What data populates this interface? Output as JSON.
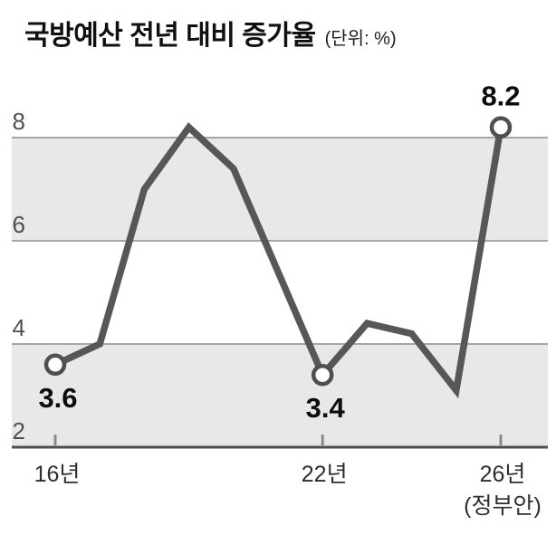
{
  "chart_data": {
    "type": "line",
    "title": "국방예산 전년 대비 증가율",
    "subtitle": "(단위: %)",
    "unit": "%",
    "x": [
      16,
      17,
      18,
      19,
      20,
      21,
      22,
      23,
      24,
      25,
      26
    ],
    "x_suffix": "년",
    "values": [
      3.6,
      4.0,
      7.0,
      8.2,
      7.4,
      5.4,
      3.4,
      4.4,
      4.2,
      3.1,
      8.2
    ],
    "ylim": [
      2,
      8.7
    ],
    "yticks": [
      2,
      4,
      6,
      8
    ],
    "grid": "horizontal-band-edges",
    "shaded_bands": [
      [
        6,
        8
      ],
      [
        2,
        4
      ]
    ],
    "xticks": [
      {
        "value": 16,
        "label": "16년"
      },
      {
        "value": 22,
        "label": "22년"
      },
      {
        "value": 26,
        "label": "26년",
        "sublabel": "(정부안)"
      }
    ],
    "annotations": [
      {
        "x": 16,
        "y": 3.6,
        "label": "3.6",
        "position": "below"
      },
      {
        "x": 22,
        "y": 3.4,
        "label": "3.4",
        "position": "below"
      },
      {
        "x": 26,
        "y": 8.2,
        "label": "8.2",
        "position": "above"
      }
    ],
    "legend": "none",
    "colors": {
      "line": "#575757",
      "band": "#e8e8e8",
      "grid": "#a6a6a6",
      "axis": "#4d4d4d",
      "tick": "#8a8a8a",
      "ytick_label": "#4f4f4f",
      "xtick_label": "#2e2e2e",
      "annotation_label": "#0d0d0d",
      "marker_stroke": "#4f4f4f",
      "marker_fill": "#ffffff"
    }
  }
}
